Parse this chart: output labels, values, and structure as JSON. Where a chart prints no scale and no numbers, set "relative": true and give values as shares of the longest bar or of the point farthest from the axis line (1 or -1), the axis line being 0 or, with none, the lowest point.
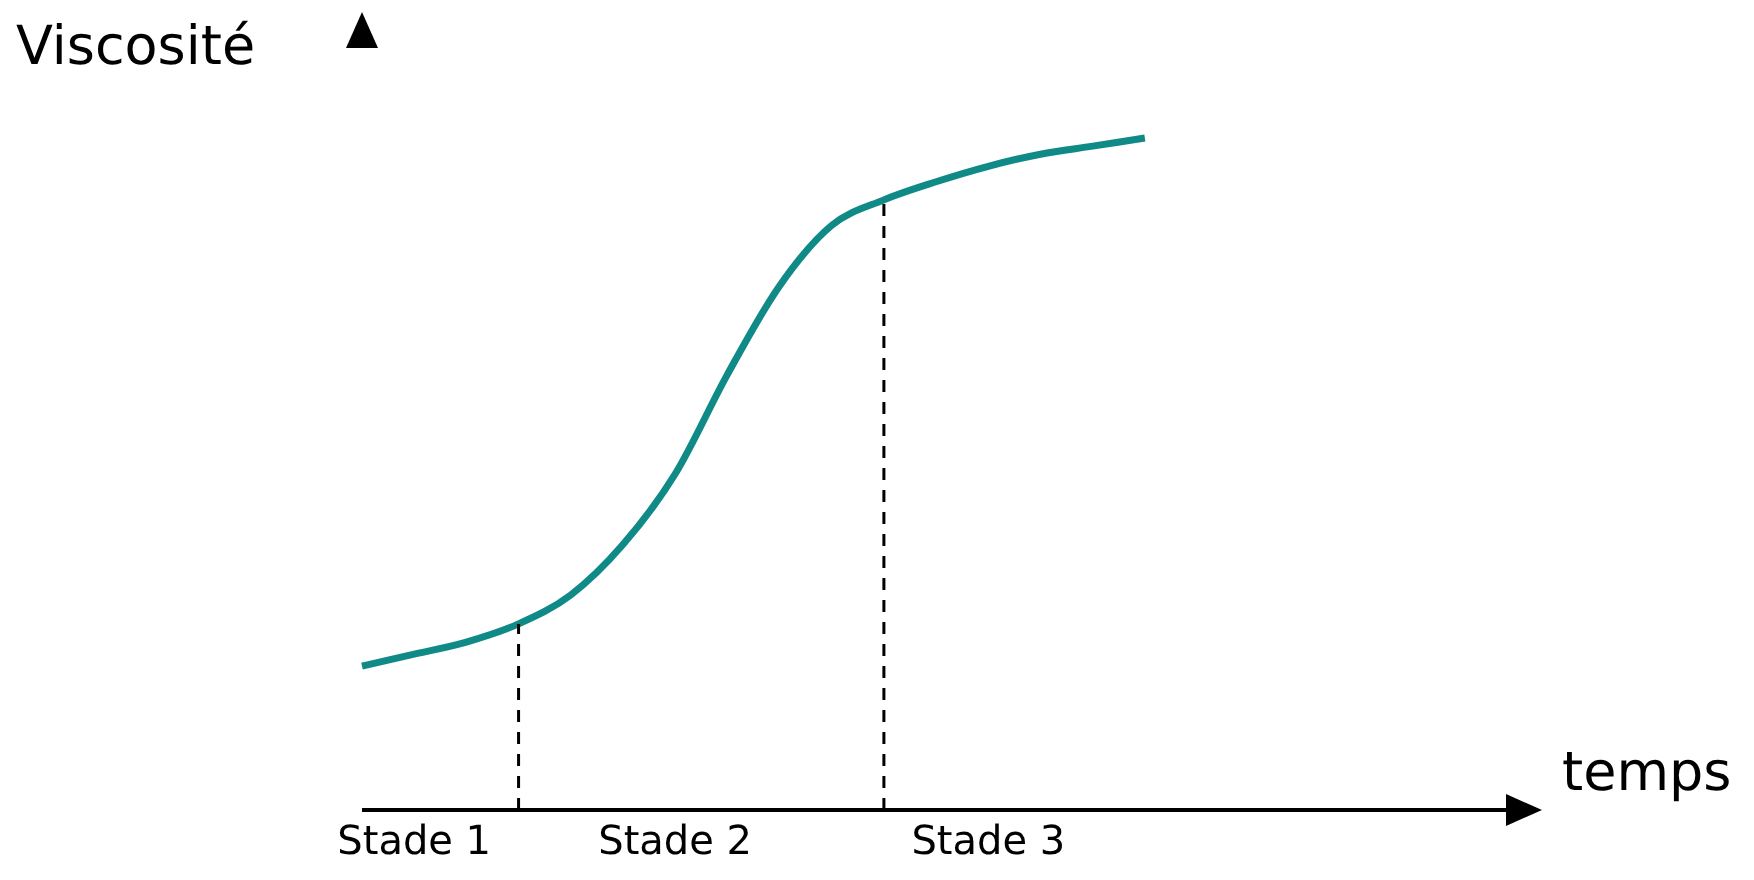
{
  "chart_data": {
    "type": "line",
    "relative": true,
    "xlabel": "temps",
    "ylabel": "Viscosité",
    "legend": false,
    "marker": "none",
    "line_style": "solid",
    "categories": [
      null,
      "Stade 1",
      null,
      null,
      null,
      null,
      "Stade 2",
      null,
      null,
      null,
      null,
      null,
      "Stade 3",
      null,
      null,
      null,
      null,
      null,
      null,
      null,
      null,
      null
    ],
    "series": [
      {
        "color": "#108a86",
        "values": [
          0.214,
          0.232,
          0.25,
          0.277,
          0.32,
          0.395,
          0.5,
          0.648,
          0.78,
          0.87,
          0.908,
          0.935,
          0.958,
          0.976,
          0.988,
          1,
          null,
          null,
          null,
          null,
          null,
          null
        ]
      }
    ]
  }
}
